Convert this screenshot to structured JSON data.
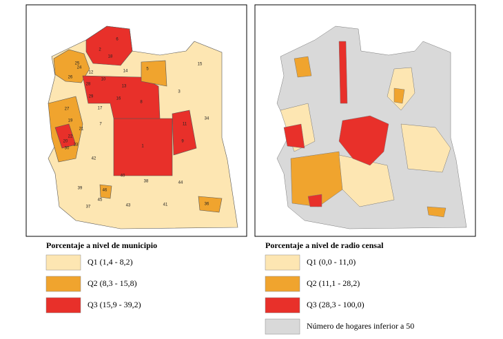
{
  "left_map": {
    "title": "Porcentaje a nivel de municipio",
    "legend": [
      {
        "label": "Q1 (1,4 - 8,2)",
        "color": "#fde6b2"
      },
      {
        "label": "Q2 (8,3 - 15,8)",
        "color": "#f0a42e"
      },
      {
        "label": "Q3 (15,9 - 39,2)",
        "color": "#e8302a"
      }
    ],
    "district_labels": [
      "1",
      "2",
      "3",
      "5",
      "6",
      "7",
      "8",
      "9",
      "10",
      "11",
      "12",
      "13",
      "14",
      "15",
      "16",
      "17",
      "18",
      "19",
      "20",
      "21",
      "22",
      "23",
      "24",
      "25",
      "26",
      "27",
      "28",
      "29",
      "30",
      "34",
      "36",
      "37",
      "38",
      "39",
      "40",
      "41",
      "42",
      "43",
      "44",
      "45",
      "46"
    ]
  },
  "right_map": {
    "title": "Porcentaje a nivel de radio censal",
    "legend": [
      {
        "label": "Q1 (0,0 - 11,0)",
        "color": "#fde6b2"
      },
      {
        "label": "Q2 (11,1 - 28,2)",
        "color": "#f0a42e"
      },
      {
        "label": "Q3 (28,3 - 100,0)",
        "color": "#e8302a"
      },
      {
        "label": "Número de hogares inferior a 50",
        "color": "#d9d9d9"
      }
    ]
  }
}
